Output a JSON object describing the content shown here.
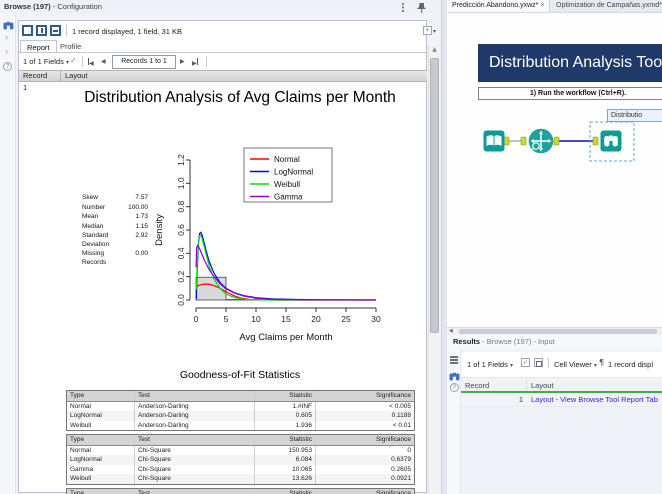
{
  "titlebar": {
    "title_main": "Browse (197)",
    "title_suffix": " - Configuration"
  },
  "config_panel": {
    "status_text": "1 record displayed, 1 field, 31 KB",
    "tabs": {
      "report": "Report",
      "profile": "Profile"
    },
    "fields_selector": "1 of 1 Fields",
    "records_label": "Records 1 to 1",
    "grid_columns": {
      "record": "Record",
      "layout": "Layout"
    },
    "row_number": "1"
  },
  "report": {
    "title": "Distribution Analysis of Avg Claims per Month",
    "gof_heading": "Goodness-of-Fit Statistics",
    "tables": [
      {
        "headers": [
          "Type",
          "Test",
          "Statistic",
          "Significance"
        ],
        "rows": [
          [
            "Normal",
            "Anderson-Darling",
            "1.#INF",
            "< 0.005"
          ],
          [
            "LogNormal",
            "Anderson-Darling",
            "0.605",
            "0.1188"
          ],
          [
            "Weibull",
            "Anderson-Darling",
            "1.936",
            "< 0.01"
          ]
        ]
      },
      {
        "headers": [
          "Type",
          "Test",
          "Statistic",
          "Significance"
        ],
        "rows": [
          [
            "Normal",
            "Chi-Square",
            "150.953",
            "0"
          ],
          [
            "LogNormal",
            "Chi-Square",
            "6.084",
            "0.6379"
          ],
          [
            "Gamma",
            "Chi-Square",
            "10.065",
            "0.2605"
          ],
          [
            "Weibull",
            "Chi-Square",
            "13.626",
            "0.0921"
          ]
        ]
      },
      {
        "headers": [
          "Type",
          "Test",
          "Statistic",
          "Significance"
        ],
        "rows": []
      }
    ]
  },
  "chart_data": {
    "type": "histogram+line",
    "title": "Distribution Analysis of Avg Claims per Month",
    "xlabel": "Avg Claims per Month",
    "ylabel": "Density",
    "xlim": [
      0,
      30
    ],
    "ylim": [
      0,
      1.2
    ],
    "xticks": [
      0,
      5,
      10,
      15,
      20,
      25,
      30
    ],
    "ytick_labels": [
      "0.0",
      "0.2",
      "0.4",
      "0.6",
      "0.8",
      "1.0",
      "1.2"
    ],
    "grid": false,
    "legend_position": "top-right",
    "histogram": {
      "bin_edges": [
        0,
        5,
        10
      ],
      "densities": [
        0.195,
        0.004
      ],
      "fill": "#d9d9d9",
      "stroke": "#444444"
    },
    "series": [
      {
        "name": "Normal",
        "color": "#ff0000",
        "x": [
          0,
          0.5,
          1,
          1.73,
          2.5,
          3.5,
          4.5,
          5.5,
          6.5,
          7.5,
          9,
          11,
          14,
          30
        ],
        "y": [
          0.115,
          0.126,
          0.133,
          0.137,
          0.132,
          0.113,
          0.086,
          0.057,
          0.033,
          0.016,
          0.005,
          0.001,
          0,
          0
        ]
      },
      {
        "name": "LogNormal",
        "color": "#0000ee",
        "x": [
          0.05,
          0.2,
          0.4,
          0.6,
          0.8,
          1,
          1.3,
          1.7,
          2.2,
          3,
          4,
          5,
          6.5,
          8,
          10,
          13,
          17,
          22,
          30
        ],
        "y": [
          0.01,
          0.25,
          0.48,
          0.57,
          0.58,
          0.56,
          0.5,
          0.42,
          0.33,
          0.23,
          0.15,
          0.1,
          0.06,
          0.037,
          0.02,
          0.009,
          0.004,
          0.0015,
          0.0005
        ]
      },
      {
        "name": "Weibull",
        "color": "#00dd00",
        "x": [
          0.05,
          0.2,
          0.4,
          0.6,
          0.8,
          1,
          1.3,
          1.7,
          2.2,
          3,
          4,
          5,
          6.5,
          8,
          10,
          13,
          30
        ],
        "y": [
          0.09,
          0.31,
          0.48,
          0.55,
          0.555,
          0.53,
          0.47,
          0.39,
          0.29,
          0.18,
          0.1,
          0.05,
          0.02,
          0.007,
          0.0015,
          0,
          0
        ]
      },
      {
        "name": "Gamma",
        "color": "#9400d3",
        "x": [
          0.02,
          0.1,
          0.3,
          0.6,
          1,
          1.5,
          2.2,
          3,
          4,
          5,
          6.5,
          8,
          10,
          13,
          17,
          22,
          30
        ],
        "y": [
          0.28,
          0.45,
          0.47,
          0.44,
          0.39,
          0.33,
          0.26,
          0.2,
          0.14,
          0.095,
          0.057,
          0.033,
          0.015,
          0.005,
          0.0015,
          0.0005,
          0
        ]
      }
    ],
    "stats": [
      [
        "Skew",
        "7.57"
      ],
      [
        "Number",
        "100.00"
      ],
      [
        "Mean",
        "1.73"
      ],
      [
        "Median",
        "1.15"
      ],
      [
        "Standard Deviation",
        "2.92"
      ],
      [
        "Missing Records",
        "0.00"
      ]
    ]
  },
  "workflow": {
    "tabs": [
      {
        "label": "Predicción Abandono.yxwz*"
      },
      {
        "label": "Optimization de Campañas.yxmd*"
      }
    ],
    "banner_title": "Distribution Analysis Tool",
    "instruction": "1) Run the workflow (Ctrl+R).",
    "tooltip_text": "Distributio",
    "tools": [
      {
        "name": "input-data-tool"
      },
      {
        "name": "distribution-analysis-macro"
      },
      {
        "name": "browse-tool",
        "selected": true
      }
    ],
    "colors": {
      "tool_teal": "#0d9b95",
      "anchor_lime": "#c6d92e",
      "connection_blue": "#4946c8",
      "connection_gray": "#999999",
      "banner_navy": "#1f3a68",
      "selection_blue": "#6aa2d8"
    }
  },
  "results_panel": {
    "header_bold": "Results",
    "header_rest": " - Browse (197) - Input",
    "fields_selector": "1 of 1 Fields",
    "cell_viewer_label": "Cell Viewer",
    "record_count_text": "1 record displ",
    "grid_columns": {
      "record": "Record",
      "layout": "Layout"
    },
    "rows": [
      {
        "record": "1",
        "layout": "Layout - View Browse Tool Report Tab"
      }
    ],
    "link_color": "#2929cc",
    "header_underline_color": "#3fae49"
  },
  "icons": {
    "close": "×",
    "caret_down": "▾",
    "check": "✓",
    "prev": "◀",
    "next": "▶",
    "up_arrow": "▲",
    "left_arrow": "◀",
    "plus": "+",
    "question": "?",
    "pilcrow": "¶"
  }
}
